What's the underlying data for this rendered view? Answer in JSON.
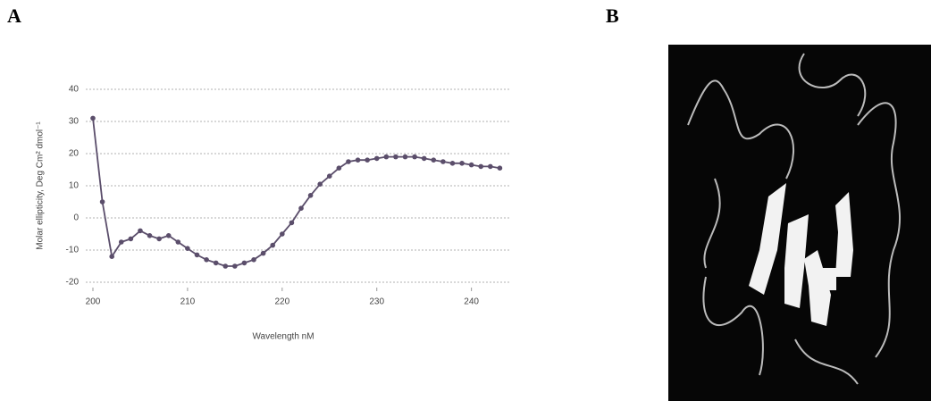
{
  "panels": {
    "a": "A",
    "b": "B"
  },
  "chart_data": {
    "type": "line",
    "xlabel": "Wavelength nM",
    "ylabel": "Molar ellipticity, Deg Cm² dmol⁻¹",
    "x": [
      200,
      201,
      202,
      203,
      204,
      205,
      206,
      207,
      208,
      209,
      210,
      211,
      212,
      213,
      214,
      215,
      216,
      217,
      218,
      219,
      220,
      221,
      222,
      223,
      224,
      225,
      226,
      227,
      228,
      229,
      230,
      231,
      232,
      233,
      234,
      235,
      236,
      237,
      238,
      239,
      240,
      241,
      242,
      243
    ],
    "values": [
      31,
      5,
      -12,
      -7.5,
      -6.5,
      -4,
      -5.5,
      -6.5,
      -5.5,
      -7.5,
      -9.5,
      -11.5,
      -13,
      -14,
      -15,
      -15,
      -14,
      -13,
      -11,
      -8.5,
      -5,
      -1.5,
      3,
      7,
      10.5,
      13,
      15.5,
      17.5,
      18,
      18,
      18.5,
      19,
      19,
      19,
      19,
      18.5,
      18,
      17.5,
      17,
      17,
      16.5,
      16,
      16,
      15.5
    ],
    "color": "#5b4e6b",
    "xlim": [
      200,
      244
    ],
    "xticks": [
      200,
      210,
      220,
      230,
      240
    ],
    "ylim": [
      -20,
      40
    ],
    "yticks": [
      -20,
      -10,
      0,
      10,
      20,
      30,
      40
    ],
    "grid": true
  }
}
